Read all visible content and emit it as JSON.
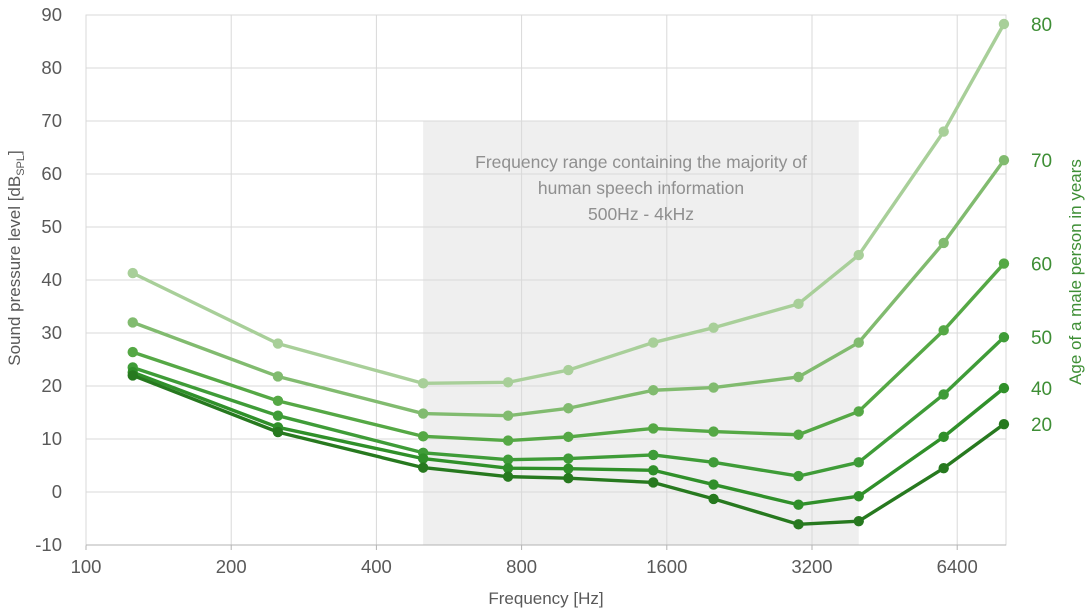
{
  "chart_data": {
    "type": "line",
    "title": "",
    "xlabel": "Frequency [Hz]",
    "ylabel": {
      "main": "Sound pressure level [dB",
      "sub": "SPL",
      "close": "]"
    },
    "y2label": "Age of a male person in years",
    "x_scale": "log2",
    "x_ticks": [
      100,
      200,
      400,
      800,
      1600,
      3200,
      6400
    ],
    "xlim": [
      100,
      8350
    ],
    "y_ticks": [
      -10,
      0,
      10,
      20,
      30,
      40,
      50,
      60,
      70,
      80,
      90
    ],
    "ylim": [
      -10,
      90
    ],
    "grid": true,
    "legend_position": "right-edge-labels",
    "x": [
      125,
      250,
      500,
      750,
      1000,
      1500,
      2000,
      3000,
      4000,
      6000,
      8000
    ],
    "series": [
      {
        "name": "80",
        "age": 80,
        "color": "#a8cf99",
        "values": [
          41.3,
          28.0,
          20.5,
          20.7,
          23.0,
          28.2,
          31.0,
          35.5,
          44.7,
          68.0,
          88.3
        ]
      },
      {
        "name": "70",
        "age": 70,
        "color": "#81bb6f",
        "values": [
          32.0,
          21.8,
          14.8,
          14.4,
          15.8,
          19.2,
          19.7,
          21.7,
          28.2,
          47.0,
          62.6
        ]
      },
      {
        "name": "60",
        "age": 60,
        "color": "#55a845",
        "values": [
          26.4,
          17.2,
          10.5,
          9.7,
          10.4,
          12.0,
          11.4,
          10.8,
          15.2,
          30.5,
          43.1
        ]
      },
      {
        "name": "50",
        "age": 50,
        "color": "#3f9c38",
        "values": [
          23.5,
          14.4,
          7.4,
          6.1,
          6.3,
          7.0,
          5.6,
          3.0,
          5.6,
          18.4,
          29.2
        ]
      },
      {
        "name": "40",
        "age": 40,
        "color": "#30902a",
        "values": [
          22.6,
          12.2,
          6.3,
          4.5,
          4.4,
          4.1,
          1.4,
          -2.4,
          -0.8,
          10.4,
          19.6
        ]
      },
      {
        "name": "20",
        "age": 20,
        "color": "#27791f",
        "values": [
          22.0,
          11.3,
          4.6,
          2.9,
          2.6,
          1.8,
          -1.3,
          -6.1,
          -5.5,
          4.5,
          12.8
        ]
      }
    ],
    "annotation": {
      "line1": "Frequency range containing the majority of",
      "line2": "human speech information",
      "line3": "500Hz - 4kHz",
      "region": {
        "x_from": 500,
        "x_to": 4000,
        "y_top": 70,
        "y_bottom": -10
      },
      "fill": "#efefef",
      "text_color": "#8f8f8f"
    },
    "colors": {
      "grid": "#d9d9d9",
      "axis_line": "#b3b3b3",
      "tick_text": "#595959",
      "age_label_text": "#3e8e35"
    }
  }
}
